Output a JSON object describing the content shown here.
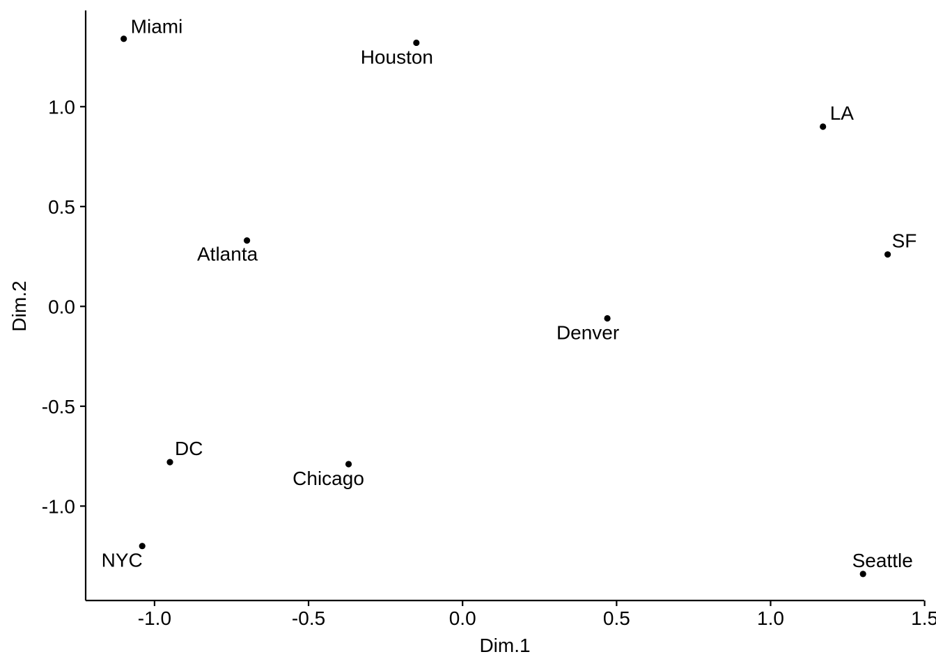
{
  "chart_data": {
    "type": "scatter",
    "title": "",
    "xlabel": "Dim.1",
    "ylabel": "Dim.2",
    "xlim": [
      -1.22,
      1.5
    ],
    "ylim": [
      -1.48,
      1.47
    ],
    "grid": false,
    "x_ticks": [
      -1.0,
      -0.5,
      0.0,
      0.5,
      1.0,
      1.5
    ],
    "x_tick_labels": [
      "-1.0",
      "-0.5",
      "0.0",
      "0.5",
      "1.0",
      "1.5"
    ],
    "y_ticks": [
      -1.0,
      -0.5,
      0.0,
      0.5,
      1.0
    ],
    "y_tick_labels": [
      "-1.0",
      "-0.5",
      "0.0",
      "0.5",
      "1.0"
    ],
    "points": [
      {
        "label": "Miami",
        "x": -1.1,
        "y": 1.34
      },
      {
        "label": "Houston",
        "x": -0.15,
        "y": 1.32
      },
      {
        "label": "LA",
        "x": 1.17,
        "y": 0.9
      },
      {
        "label": "SF",
        "x": 1.38,
        "y": 0.26
      },
      {
        "label": "Atlanta",
        "x": -0.7,
        "y": 0.33
      },
      {
        "label": "Denver",
        "x": 0.47,
        "y": -0.06
      },
      {
        "label": "DC",
        "x": -0.95,
        "y": -0.78
      },
      {
        "label": "Chicago",
        "x": -0.37,
        "y": -0.79
      },
      {
        "label": "NYC",
        "x": -1.04,
        "y": -1.2
      },
      {
        "label": "Seattle",
        "x": 1.3,
        "y": -1.34
      }
    ]
  }
}
